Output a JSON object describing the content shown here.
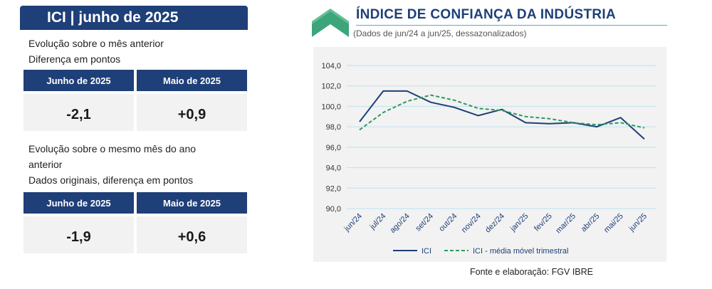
{
  "left": {
    "title": "ICI | junho de 2025",
    "section1": {
      "line1": "Evolução sobre o mês anterior",
      "line2": "Diferença em pontos",
      "headers": [
        "Junho de 2025",
        "Maio de 2025"
      ],
      "values": [
        "-2,1",
        "+0,9"
      ]
    },
    "section2": {
      "line1": "Evolução sobre o mesmo mês do ano",
      "line2": "anterior",
      "line3": "Dados originais, diferença em pontos",
      "headers": [
        "Junho de 2025",
        "Maio de 2025"
      ],
      "values": [
        "-1,9",
        "+0,6"
      ]
    }
  },
  "colors": {
    "navy": "#1e3f78",
    "green": "#2e9a5e",
    "grid": "#bfe0ee",
    "logo": "#3da57a"
  },
  "chart_data": {
    "type": "line",
    "title": "ÍNDICE DE CONFIANÇA DA INDÚSTRIA",
    "subtitle": "(Dados de jun/24 a jun/25, dessazonalizados)",
    "categories": [
      "jun/24",
      "jul/24",
      "ago/24",
      "set/24",
      "out/24",
      "nov/24",
      "dez/24",
      "jan/25",
      "fev/25",
      "mar/25",
      "abr/25",
      "mai/25",
      "jun/25"
    ],
    "ylim": [
      90,
      104
    ],
    "yticks": [
      "90,0",
      "92,0",
      "94,0",
      "96,0",
      "98,0",
      "100,0",
      "102,0",
      "104,0"
    ],
    "grid": true,
    "legend_position": "bottom",
    "series": [
      {
        "name": "ICI",
        "style": "solid",
        "color": "#1e3f78",
        "values": [
          98.5,
          101.5,
          101.5,
          100.4,
          99.9,
          99.1,
          99.7,
          98.4,
          98.3,
          98.4,
          98.0,
          98.9,
          96.8
        ]
      },
      {
        "name": "ICI - média móvel trimestral",
        "style": "dashed",
        "color": "#2e9a5e",
        "values": [
          97.7,
          99.4,
          100.5,
          101.1,
          100.6,
          99.8,
          99.6,
          99.0,
          98.8,
          98.4,
          98.2,
          98.4,
          97.9
        ]
      }
    ],
    "source": "Fonte e elaboração: FGV IBRE"
  }
}
